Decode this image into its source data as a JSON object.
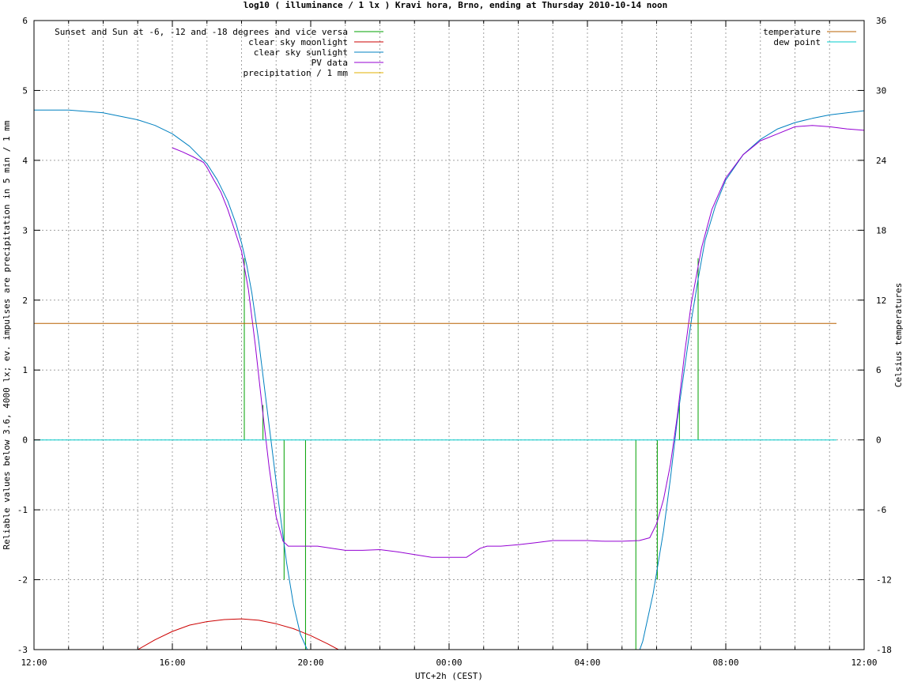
{
  "chart_data": {
    "type": "line",
    "title": "log10 ( illuminance / 1 lx ) Kravi hora, Brno, ending at Thursday 2010-10-14 noon",
    "xlabel": "UTC+2h (CEST)",
    "ylabel": "Reliable values below 3.6, 4000 lx; ev. impulses are precipitation in 5 min / 1 mm",
    "y2label": "Celsius temperatures",
    "xlim": [
      12,
      36
    ],
    "ylim": [
      -3,
      6
    ],
    "y2lim": [
      -18,
      36
    ],
    "grid": true,
    "x_ticks": [
      {
        "value": 12,
        "label": "12:00"
      },
      {
        "value": 16,
        "label": "16:00"
      },
      {
        "value": 20,
        "label": "20:00"
      },
      {
        "value": 24,
        "label": "00:00"
      },
      {
        "value": 28,
        "label": "04:00"
      },
      {
        "value": 32,
        "label": "08:00"
      },
      {
        "value": 36,
        "label": "12:00"
      }
    ],
    "y_ticks": [
      {
        "value": -3,
        "label": "-3"
      },
      {
        "value": -2,
        "label": "-2"
      },
      {
        "value": -1,
        "label": "-1"
      },
      {
        "value": 0,
        "label": "0"
      },
      {
        "value": 1,
        "label": "1"
      },
      {
        "value": 2,
        "label": "2"
      },
      {
        "value": 3,
        "label": "3"
      },
      {
        "value": 4,
        "label": "4"
      },
      {
        "value": 5,
        "label": "5"
      },
      {
        "value": 6,
        "label": "6"
      }
    ],
    "y2_ticks": [
      {
        "value": -18,
        "label": "-18"
      },
      {
        "value": -12,
        "label": "-12"
      },
      {
        "value": -6,
        "label": "-6"
      },
      {
        "value": 0,
        "label": "0"
      },
      {
        "value": 6,
        "label": "6"
      },
      {
        "value": 12,
        "label": "12"
      },
      {
        "value": 18,
        "label": "18"
      },
      {
        "value": 24,
        "label": "24"
      },
      {
        "value": 30,
        "label": "30"
      },
      {
        "value": 36,
        "label": "36"
      }
    ],
    "legend_left": {
      "placement": "top-left",
      "entries": [
        {
          "series": "sunset_markers",
          "label": "Sunset and Sun at -6, -12 and -18 degrees and vice versa"
        },
        {
          "series": "moonlight",
          "label": "clear sky moonlight"
        },
        {
          "series": "sunlight",
          "label": "clear sky sunlight"
        },
        {
          "series": "pv",
          "label": "PV data"
        },
        {
          "series": "precip",
          "label": "precipitation / 1 mm"
        }
      ]
    },
    "legend_right": {
      "placement": "top-right",
      "entries": [
        {
          "series": "temperature",
          "label": "temperature"
        },
        {
          "series": "dewpoint",
          "label": "dew point"
        }
      ]
    },
    "series": [
      {
        "id": "sunset_markers",
        "axis": "y",
        "style": "impulses",
        "color": "#00a000",
        "x": [
          18.08,
          18.62,
          19.23,
          19.85,
          29.4,
          30.02,
          30.66,
          31.2
        ],
        "y": [
          2.6,
          0.5,
          -2.0,
          -3.0,
          -3.0,
          -2.0,
          0.5,
          2.6
        ]
      },
      {
        "id": "moonlight",
        "axis": "y",
        "style": "line",
        "color": "#cc0000",
        "x": [
          15.0,
          15.5,
          16.0,
          16.5,
          17.0,
          17.5,
          18.0,
          18.5,
          19.0,
          19.5,
          20.0,
          20.5,
          20.8
        ],
        "y": [
          -3.0,
          -2.86,
          -2.74,
          -2.65,
          -2.6,
          -2.57,
          -2.56,
          -2.58,
          -2.63,
          -2.7,
          -2.8,
          -2.92,
          -3.0
        ]
      },
      {
        "id": "sunlight",
        "axis": "y",
        "style": "line",
        "color": "#0080c0",
        "x": [
          12.0,
          13.0,
          14.0,
          15.0,
          15.5,
          16.0,
          16.5,
          17.0,
          17.3,
          17.6,
          17.85,
          18.0,
          18.15,
          18.3,
          18.5,
          18.7,
          18.9,
          19.1,
          19.3,
          19.5,
          19.7,
          19.9,
          20.2,
          29.3,
          29.6,
          29.9,
          30.2,
          30.4,
          30.6,
          30.8,
          31.0,
          31.2,
          31.4,
          31.7,
          32.0,
          32.5,
          33.0,
          33.5,
          34.0,
          34.5,
          35.0,
          35.5,
          36.0
        ],
        "y": [
          4.72,
          4.72,
          4.68,
          4.58,
          4.5,
          4.38,
          4.2,
          3.95,
          3.72,
          3.42,
          3.08,
          2.82,
          2.5,
          2.1,
          1.4,
          0.6,
          -0.2,
          -1.0,
          -1.75,
          -2.35,
          -2.78,
          -3.0,
          -3.3,
          -3.3,
          -2.88,
          -2.2,
          -1.3,
          -0.55,
          0.3,
          1.0,
          1.7,
          2.3,
          2.85,
          3.35,
          3.72,
          4.08,
          4.3,
          4.45,
          4.54,
          4.6,
          4.65,
          4.68,
          4.71
        ]
      },
      {
        "id": "pv",
        "axis": "y",
        "style": "line",
        "color": "#9400d3",
        "x": [
          16.0,
          16.3,
          16.6,
          16.9,
          17.0,
          17.2,
          17.4,
          17.6,
          17.8,
          18.0,
          18.2,
          18.4,
          18.6,
          18.8,
          19.0,
          19.2,
          19.35,
          19.5,
          19.8,
          20.2,
          20.6,
          21.0,
          21.5,
          22.0,
          22.5,
          23.0,
          23.5,
          24.0,
          24.5,
          24.9,
          25.1,
          25.5,
          26.0,
          26.5,
          27.0,
          27.5,
          28.0,
          28.5,
          29.0,
          29.5,
          29.8,
          30.0,
          30.2,
          30.4,
          30.6,
          30.8,
          31.0,
          31.3,
          31.6,
          32.0,
          32.5,
          33.0,
          33.5,
          34.0,
          34.5,
          35.0,
          35.5,
          36.0
        ],
        "y": [
          4.18,
          4.12,
          4.05,
          3.97,
          3.9,
          3.72,
          3.55,
          3.3,
          3.0,
          2.7,
          2.15,
          1.35,
          0.45,
          -0.4,
          -1.1,
          -1.45,
          -1.52,
          -1.52,
          -1.52,
          -1.52,
          -1.55,
          -1.58,
          -1.58,
          -1.57,
          -1.6,
          -1.64,
          -1.68,
          -1.68,
          -1.68,
          -1.55,
          -1.52,
          -1.52,
          -1.5,
          -1.47,
          -1.44,
          -1.44,
          -1.44,
          -1.45,
          -1.45,
          -1.44,
          -1.4,
          -1.2,
          -0.85,
          -0.35,
          0.35,
          1.2,
          1.95,
          2.75,
          3.3,
          3.75,
          4.08,
          4.28,
          4.38,
          4.48,
          4.5,
          4.48,
          4.45,
          4.43
        ]
      },
      {
        "id": "precip",
        "axis": "y",
        "style": "impulses",
        "color": "#e0b000",
        "x": [],
        "y": []
      },
      {
        "id": "temperature",
        "axis": "y2",
        "style": "line",
        "color": "#b86000",
        "x": [
          12.0,
          35.2
        ],
        "y": [
          10.0,
          10.0
        ]
      },
      {
        "id": "dewpoint",
        "axis": "y2",
        "style": "line",
        "color": "#00cccc",
        "x": [
          12.0,
          35.2
        ],
        "y": [
          0.0,
          0.0
        ]
      }
    ]
  }
}
